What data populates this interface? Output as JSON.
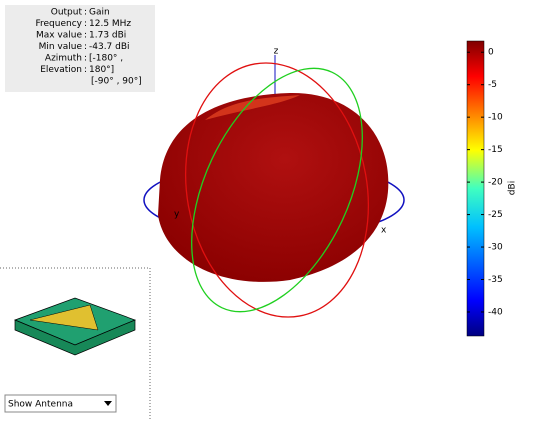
{
  "info": {
    "rows": [
      [
        "Output",
        "Gain"
      ],
      [
        "Frequency",
        "12.5 MHz"
      ],
      [
        "Max value",
        "1.73 dBi"
      ],
      [
        "Min value",
        "-43.7 dBi"
      ],
      [
        "Azimuth",
        "[-180° ,"
      ],
      [
        "Elevation",
        "180°]"
      ]
    ],
    "extra": "[-90° , 90°]"
  },
  "axes_labels": {
    "z": "z",
    "x": "x",
    "y": "y"
  },
  "colorbar": {
    "lim": [
      -43.7,
      1.73
    ],
    "ticks": [
      0,
      -5,
      -10,
      -15,
      -20,
      -25,
      -30,
      -35,
      -40
    ],
    "label": "dBi"
  },
  "dropdown": {
    "label": "Show Antenna"
  }
}
